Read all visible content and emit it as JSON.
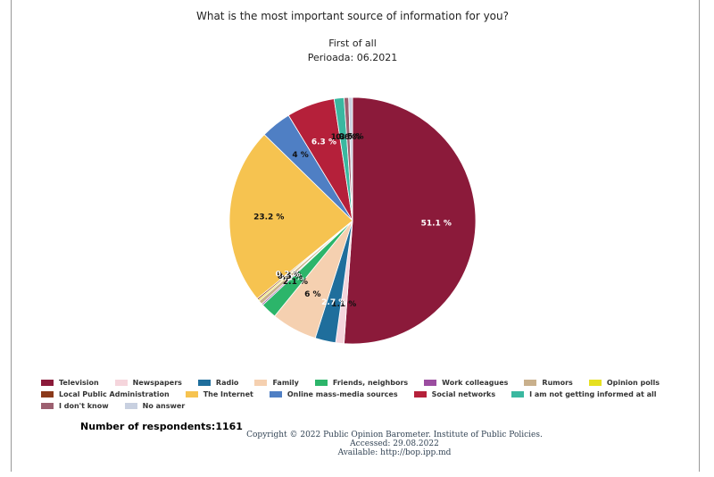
{
  "chart_data": {
    "type": "pie",
    "title": "What is the most important source of information for you?",
    "subtitle": "First of all",
    "period": "Perioada: 06.2021",
    "categories": [
      "Television",
      "Newspapers",
      "Radio",
      "Family",
      "Friends, neighbors",
      "Work colleagues",
      "Rumors",
      "Opinion polls",
      "Local Public Administration",
      "The Internet",
      "Online mass-media sources",
      "Social networks",
      "I am not getting informed at all",
      "I don't know",
      "No answer"
    ],
    "values": [
      51.1,
      1.1,
      2.7,
      6,
      2.1,
      0.2,
      0.5,
      0.2,
      0.2,
      23.2,
      4,
      6.3,
      1.3,
      0.6,
      0.5
    ],
    "value_labels": [
      "51.1 %",
      "1.1 %",
      "2.7 %",
      "6 %",
      "2.1 %",
      "0.2 %",
      "0.5 %",
      "0.2 %",
      "0.2 %",
      "23.2 %",
      "4 %",
      "6.3 %",
      "1.3 %",
      "0.6 %",
      "0.5 %"
    ],
    "colors": [
      "#8b1a3a",
      "#f5d5dc",
      "#1f6e9c",
      "#f5d0b0",
      "#2cb56a",
      "#9b4da0",
      "#c9b08c",
      "#e6e020",
      "#8b3a1a",
      "#f6c350",
      "#4f7fc4",
      "#b5203a",
      "#3ab8a0",
      "#9c6070",
      "#c8d0e0"
    ],
    "respondents": "Number of respondents:1161",
    "copyright": [
      "Copyright © 2022 Public Opinion Barometer. Institute of Public Policies.",
      "Accessed: 29.08.2022",
      "Available: http://bop.ipp.md"
    ]
  }
}
